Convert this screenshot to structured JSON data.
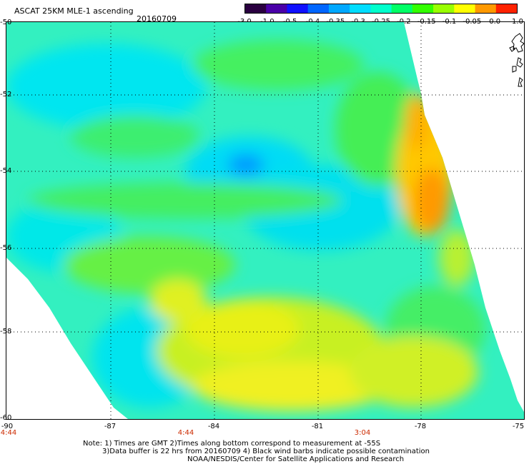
{
  "header": {
    "title": "ASCAT 25KM MLE-1 ascending",
    "date": "20160709"
  },
  "colorbar": {
    "labels": [
      "-3.0",
      "-1.0",
      "-0.5",
      "-0.4",
      "-0.35",
      "-0.3",
      "-0.25",
      "-0.2",
      "-0.15",
      "-0.1",
      "-0.05",
      "0.0",
      "1.0"
    ],
    "colors": [
      "#2a0040",
      "#4a00a8",
      "#1010ff",
      "#0066ff",
      "#00a8ff",
      "#00ddff",
      "#00ffcc",
      "#00ff66",
      "#33ff00",
      "#99ff00",
      "#ffff00",
      "#ff9900",
      "#ff2200"
    ]
  },
  "map": {
    "lat_labels": [
      "-50",
      "-52",
      "-54",
      "-56",
      "-58",
      "-60"
    ],
    "lon_labels": [
      "-90",
      "-87",
      "-84",
      "-81",
      "-78",
      "-75"
    ],
    "time_labels": [
      "4:44",
      "4:44",
      "3:04"
    ]
  },
  "notes": {
    "line1": "Note: 1) Times are GMT 2)Times along bottom correspond to measurement at -55S",
    "line2": "3)Data buffer is 22 hrs from 20160709 4) Black wind barbs indicate possible contamination",
    "line3": "NOAA/NESDIS/Center for Satellite Applications and Research"
  }
}
